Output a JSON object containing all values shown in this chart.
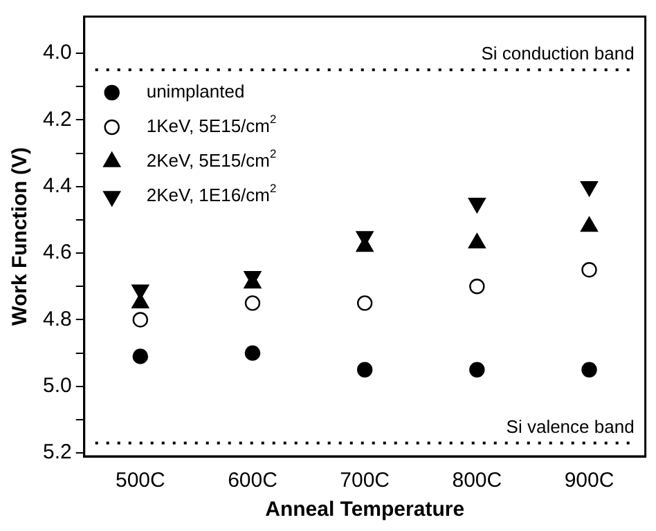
{
  "chart_data": {
    "type": "scatter",
    "xlabel": "Anneal Temperature",
    "ylabel": "Work Function (V)",
    "categories": [
      "500C",
      "600C",
      "700C",
      "800C",
      "900C"
    ],
    "series": [
      {
        "name": "unimplanted",
        "color": "#000000",
        "marker": "circle",
        "values": [
          4.91,
          4.9,
          4.95,
          4.95,
          4.95
        ]
      },
      {
        "name": "1KeV, 5E15/cm$^{2}$",
        "color": "#000000",
        "marker": "circle-open",
        "values": [
          4.8,
          4.75,
          4.75,
          4.7,
          4.65
        ]
      },
      {
        "name": "2KeV, 5E15/cm$^{2}$",
        "color": "#000000",
        "marker": "triangle",
        "values": [
          4.75,
          4.69,
          4.58,
          4.57,
          4.52
        ]
      },
      {
        "name": "2KeV, 1E16/cm$^{2}$",
        "color": "#000000",
        "marker": "triangle-down",
        "values": [
          4.71,
          4.67,
          4.55,
          4.45,
          4.4
        ]
      }
    ],
    "ylim": [
      5.21,
      3.89
    ],
    "yticks": [
      {
        "value": 4,
        "label": "4.0"
      },
      {
        "value": 4.1,
        "label": null
      },
      {
        "value": 4.2,
        "label": "4.2"
      },
      {
        "value": 4.3,
        "label": null
      },
      {
        "value": 4.4,
        "label": "4.4"
      },
      {
        "value": 4.5,
        "label": null
      },
      {
        "value": 4.6,
        "label": "4.6"
      },
      {
        "value": 4.7,
        "label": null
      },
      {
        "value": 4.8,
        "label": "4.8"
      },
      {
        "value": 4.9,
        "label": null
      },
      {
        "value": 5,
        "label": "5.0"
      },
      {
        "value": 5.1,
        "label": null
      },
      {
        "value": 5.2,
        "label": "5.2"
      }
    ],
    "ref_lines": [
      {
        "axis": "y",
        "value": 4.05,
        "label": "Si conduction band",
        "line_style": "dotted",
        "color": "#000000"
      },
      {
        "axis": "y",
        "value": 5.17,
        "label": "Si valence band",
        "line_style": "dotted",
        "color": "#000000"
      }
    ],
    "grid": false,
    "legend": "top left"
  }
}
